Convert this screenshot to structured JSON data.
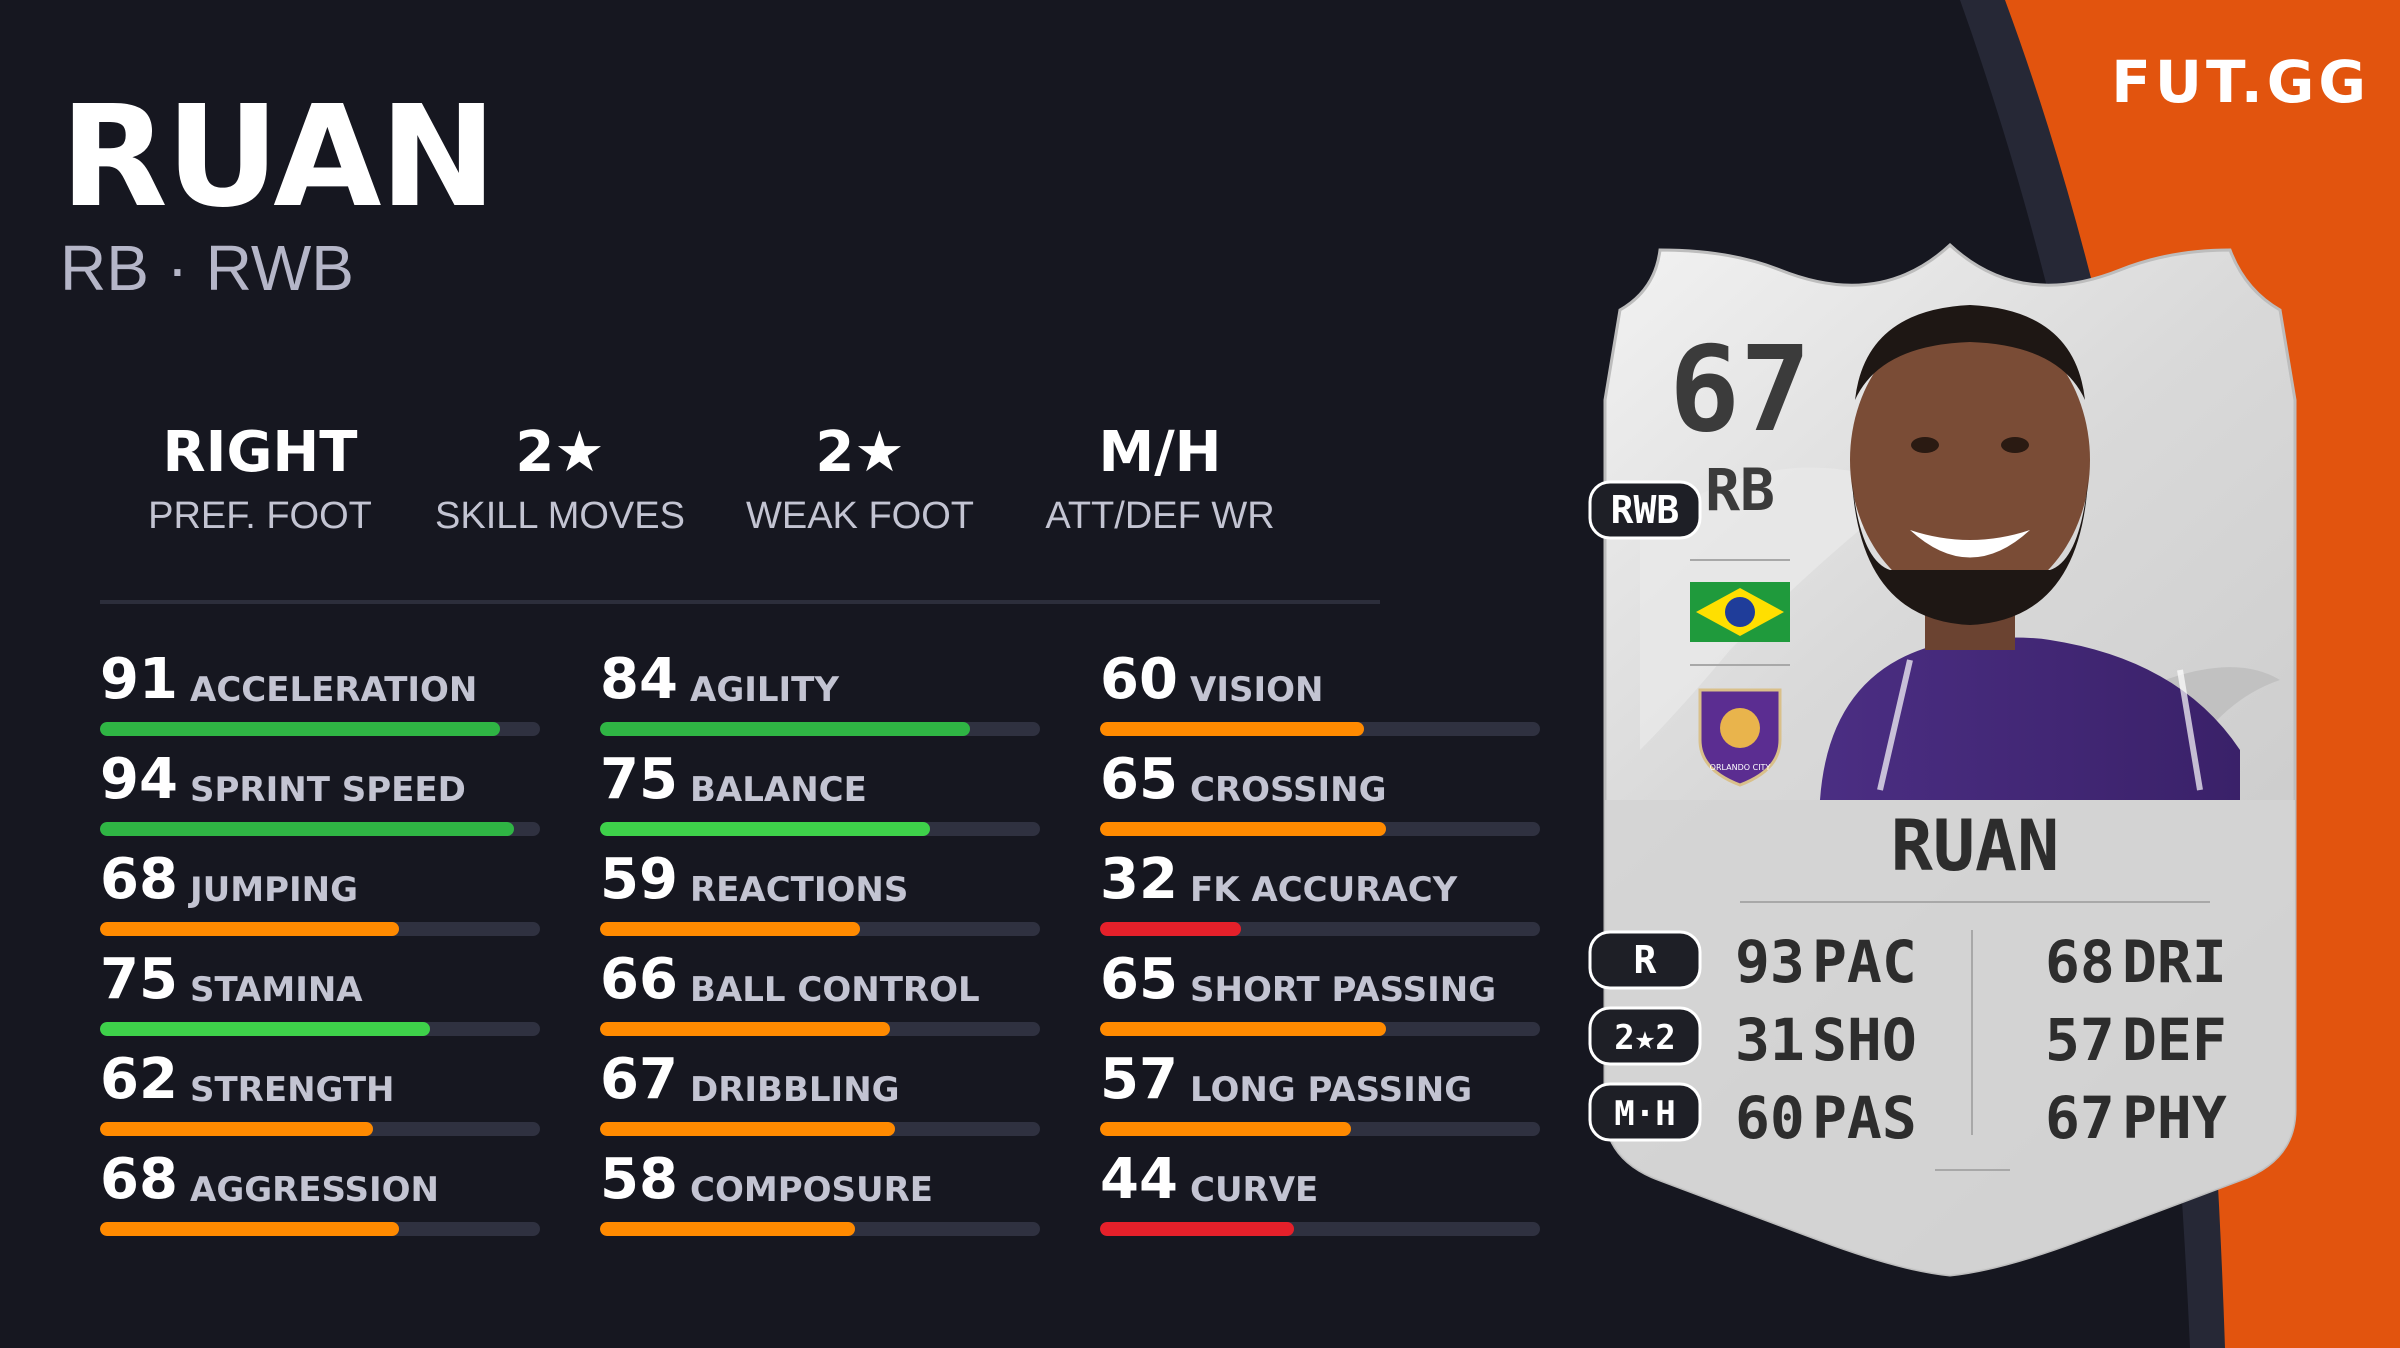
{
  "brand": "FUT.GG",
  "player": {
    "name": "RUAN",
    "positions": "RB · RWB"
  },
  "info": [
    {
      "value": "RIGHT",
      "label": "PREF. FOOT"
    },
    {
      "value": "2★",
      "label": "SKILL MOVES"
    },
    {
      "value": "2★",
      "label": "WEAK FOOT"
    },
    {
      "value": "M/H",
      "label": "ATT/DEF WR"
    }
  ],
  "stats": [
    [
      {
        "value": "91",
        "name": "ACCELERATION",
        "color": "#2fb544"
      },
      {
        "value": "94",
        "name": "SPRINT SPEED",
        "color": "#2fb544"
      },
      {
        "value": "68",
        "name": "JUMPING",
        "color": "#ff8a00"
      },
      {
        "value": "75",
        "name": "STAMINA",
        "color": "#3ed14a"
      },
      {
        "value": "62",
        "name": "STRENGTH",
        "color": "#ff8a00"
      },
      {
        "value": "68",
        "name": "AGGRESSION",
        "color": "#ff8a00"
      }
    ],
    [
      {
        "value": "84",
        "name": "AGILITY",
        "color": "#2fb544"
      },
      {
        "value": "75",
        "name": "BALANCE",
        "color": "#3ed14a"
      },
      {
        "value": "59",
        "name": "REACTIONS",
        "color": "#ff8a00"
      },
      {
        "value": "66",
        "name": "BALL CONTROL",
        "color": "#ff8a00"
      },
      {
        "value": "67",
        "name": "DRIBBLING",
        "color": "#ff8a00"
      },
      {
        "value": "58",
        "name": "COMPOSURE",
        "color": "#ff8a00"
      }
    ],
    [
      {
        "value": "60",
        "name": "VISION",
        "color": "#ff8a00"
      },
      {
        "value": "65",
        "name": "CROSSING",
        "color": "#ff8a00"
      },
      {
        "value": "32",
        "name": "FK ACCURACY",
        "color": "#e5202a"
      },
      {
        "value": "65",
        "name": "SHORT PASSING",
        "color": "#ff8a00"
      },
      {
        "value": "57",
        "name": "LONG PASSING",
        "color": "#ff8a00"
      },
      {
        "value": "44",
        "name": "CURVE",
        "color": "#e5202a"
      }
    ]
  ],
  "card": {
    "rating": "67",
    "position": "RB",
    "alt_position": "RWB",
    "name": "RUAN",
    "foot_badge": "R",
    "skills_badge": "2★2",
    "workrate_badge": "M·H",
    "face_stats_left": [
      {
        "value": "93",
        "label": "PAC"
      },
      {
        "value": "31",
        "label": "SHO"
      },
      {
        "value": "60",
        "label": "PAS"
      }
    ],
    "face_stats_right": [
      {
        "value": "68",
        "label": "DRI"
      },
      {
        "value": "57",
        "label": "DEF"
      },
      {
        "value": "67",
        "label": "PHY"
      }
    ],
    "club_badge_text": "ORLANDO CITY"
  },
  "colors": {
    "background": "#161720",
    "accent": "#e2540e",
    "green": "#2fb544",
    "orange": "#ff8a00",
    "red": "#e5202a"
  }
}
